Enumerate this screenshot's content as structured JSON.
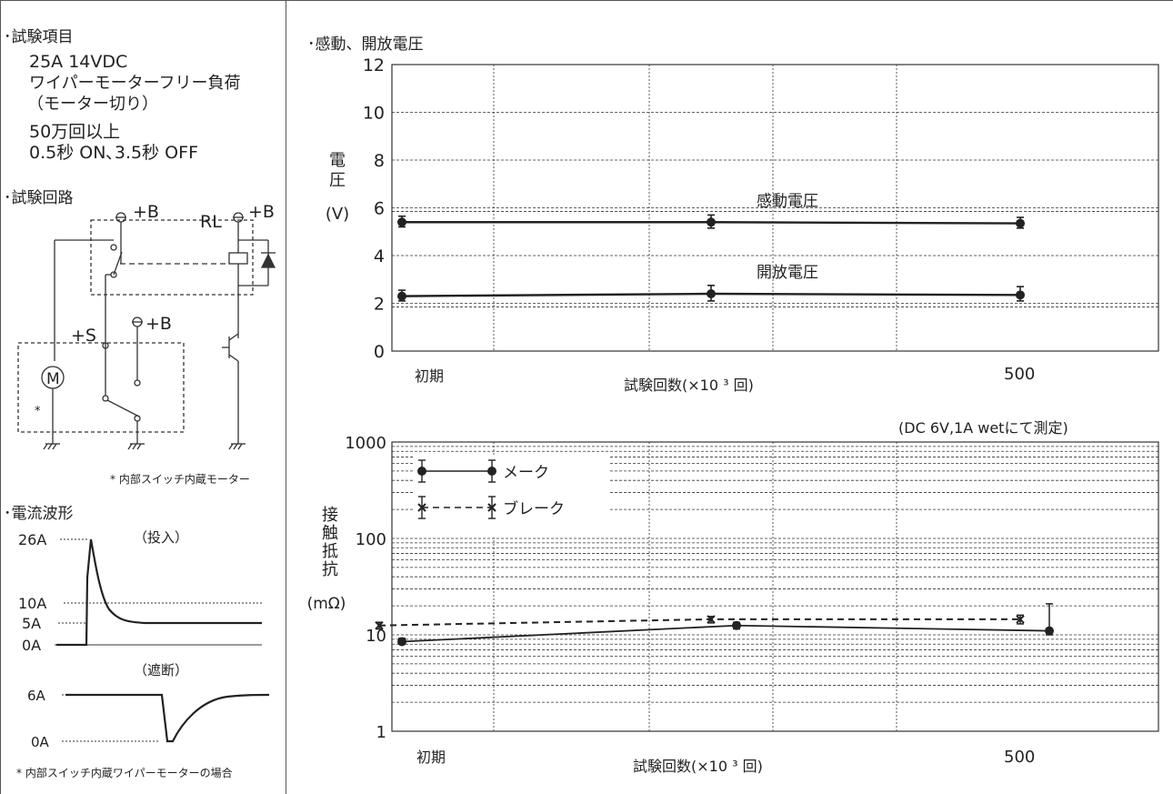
{
  "left": {
    "test_items_title": "･試験項目",
    "test_items": [
      "25A 14VDC",
      "ワイパーモーターフリー負荷",
      "（モーター切り）",
      "50万回以上",
      "0.5秒 ON､3.5秒 OFF"
    ],
    "circuit_title": "･試験回路",
    "circuit_labels": {
      "b1": "+B",
      "rl": "RL",
      "b2": "+B",
      "s": "+S",
      "b3": "+B",
      "m": "M",
      "star": "*"
    },
    "circuit_note": "* 内部スイッチ内蔵モーター",
    "waveform_title": "･電流波形",
    "waveform": {
      "on_label": "（投入）",
      "off_label": "（遮断）",
      "on_levels": [
        "26A",
        "10A",
        "5A",
        "0A"
      ],
      "off_levels": [
        "6A",
        "0A"
      ]
    },
    "waveform_note": "* 内部スイッチ内蔵ワイパーモーターの場合"
  },
  "chart_data": [
    {
      "type": "line",
      "title": "･感動、開放電圧",
      "ylabel": [
        "電",
        "圧",
        "(V)"
      ],
      "xlabel": "試験回数(×10 ³ 回)",
      "x_tick_labels": [
        "初期",
        "500"
      ],
      "ylim": [
        0,
        12
      ],
      "yticks": [
        0,
        2,
        4,
        6,
        8,
        10,
        12
      ],
      "grid": true,
      "series": [
        {
          "name": "感動電圧",
          "x": [
            0,
            250,
            500
          ],
          "y": [
            5.4,
            5.4,
            5.35
          ],
          "err": [
            [
              5.2,
              5.65
            ],
            [
              5.15,
              5.7
            ],
            [
              5.15,
              5.6
            ]
          ]
        },
        {
          "name": "開放電圧",
          "x": [
            0,
            250,
            500
          ],
          "y": [
            2.3,
            2.4,
            2.35
          ],
          "err": [
            [
              2.1,
              2.55
            ],
            [
              2.1,
              2.75
            ],
            [
              2.1,
              2.7
            ]
          ]
        }
      ]
    },
    {
      "type": "line",
      "condition": "(DC 6V,1A wetにて測定)",
      "ylabel": [
        "接",
        "触",
        "抵",
        "抗",
        "(mΩ)"
      ],
      "xlabel": "試験回数(×10 ³ 回)",
      "x_tick_labels": [
        "初期",
        "500"
      ],
      "yscale": "log",
      "ylim": [
        1,
        1000
      ],
      "ytick_labels": [
        "1",
        "10",
        "100",
        "1000"
      ],
      "grid": true,
      "legend_location": "top-left",
      "series": [
        {
          "name": "メーク",
          "marker": "dot",
          "linestyle": "solid",
          "x": [
            0,
            250,
            500
          ],
          "y": [
            8.5,
            12.5,
            11.0
          ],
          "err": [
            [
              8.0,
              9.2
            ],
            [
              11.5,
              13.5
            ],
            [
              10.0,
              21.0
            ]
          ]
        },
        {
          "name": "ブレーク",
          "marker": "x",
          "linestyle": "dashed",
          "x": [
            0,
            250,
            500
          ],
          "y": [
            12.5,
            14.5,
            14.5
          ],
          "err": [
            [
              11.5,
              13.5
            ],
            [
              13.3,
              15.5
            ],
            [
              13.0,
              16.0
            ]
          ]
        }
      ]
    }
  ]
}
